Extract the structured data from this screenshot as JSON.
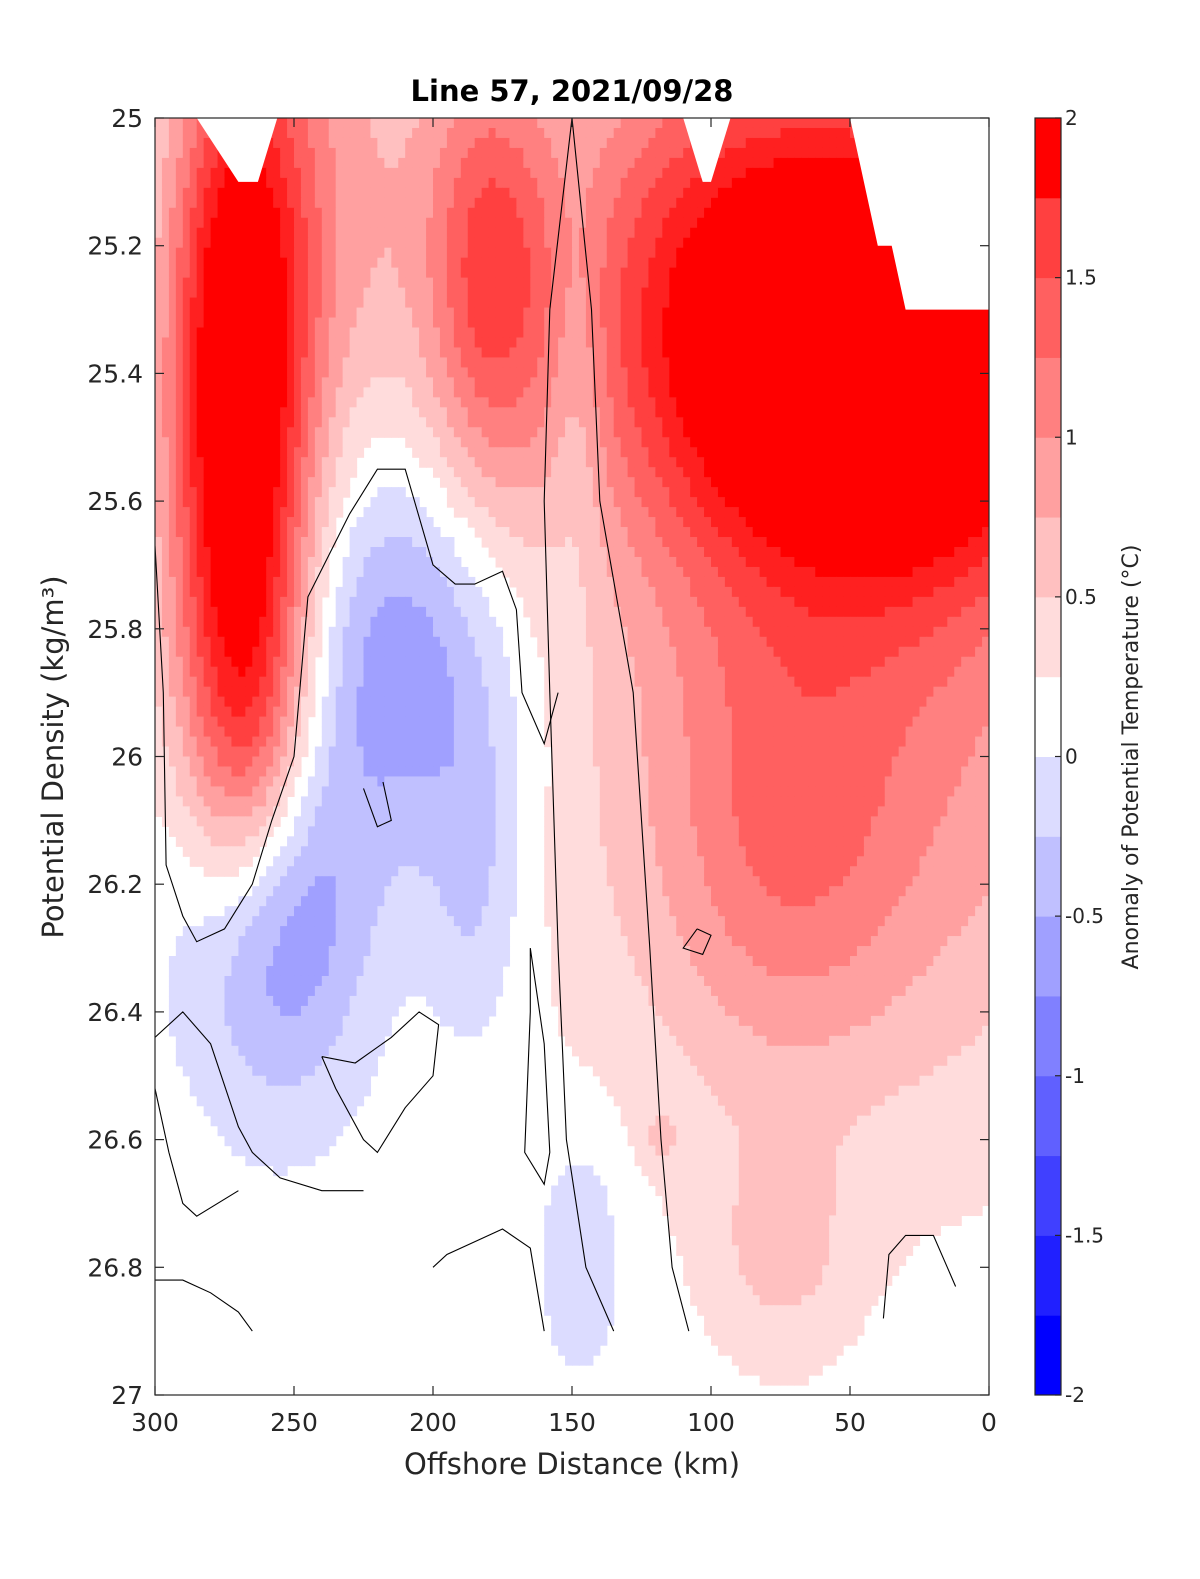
{
  "chart_data": {
    "type": "heatmap",
    "title": "Line 57, 2021/09/28",
    "xlabel": "Offshore Distance (km)",
    "ylabel": "Potential Density (kg/m³)",
    "xlim": [
      300,
      0
    ],
    "ylim": [
      25,
      27
    ],
    "x_reversed": true,
    "y_reversed": true,
    "x_ticks": [
      "300",
      "250",
      "200",
      "150",
      "100",
      "50",
      "0"
    ],
    "y_ticks": [
      "25",
      "25.2",
      "25.4",
      "25.6",
      "25.8",
      "26",
      "26.2",
      "26.4",
      "26.6",
      "26.8",
      "27"
    ],
    "colorbar": {
      "label": "Anomaly of Potential Temperature (°C)",
      "range": [
        -2,
        2
      ],
      "step": 0.25,
      "ticks": [
        "2",
        "1.5",
        "1",
        "0.5",
        "0",
        "-0.5",
        "-1",
        "-1.5",
        "-2"
      ],
      "colors": [
        "#0000ff",
        "#2020ff",
        "#4040ff",
        "#6060ff",
        "#8080ff",
        "#a0a0ff",
        "#c0c0ff",
        "#dcdcff",
        "#ffffff",
        "#ffdcdc",
        "#ffc0c0",
        "#ffa0a0",
        "#ff8080",
        "#ff6060",
        "#ff4040",
        "#ff2020",
        "#ff0000"
      ]
    },
    "features": [
      {
        "name": "inshore-warm-core",
        "x": 30,
        "y": 25.4,
        "peak": 2.0
      },
      {
        "name": "offshore-warm-core",
        "x": 270,
        "y": 25.5,
        "peak": 2.0
      },
      {
        "name": "mid-warm-tongue",
        "x": 180,
        "y": 25.25,
        "peak": 1.0
      },
      {
        "name": "subsurface-cool-1",
        "x": 210,
        "y": 25.85,
        "peak": -0.75
      },
      {
        "name": "subsurface-cool-2",
        "x": 258,
        "y": 26.25,
        "peak": -1.0
      },
      {
        "name": "deep-warm-patch",
        "x": 75,
        "y": 26.78,
        "peak": 0.5
      },
      {
        "name": "deep-cool-patch",
        "x": 147,
        "y": 26.78,
        "peak": -0.5
      }
    ]
  }
}
